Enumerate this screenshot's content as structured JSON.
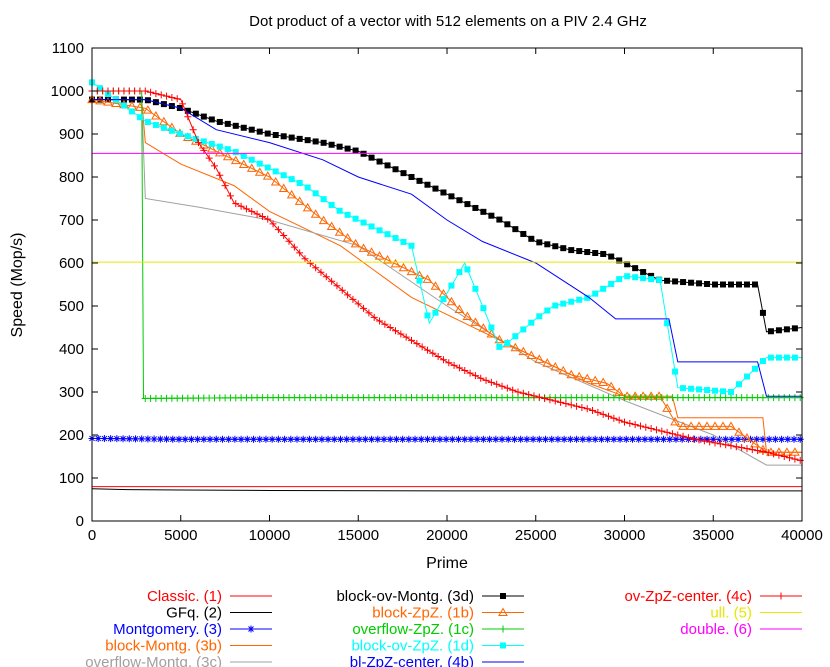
{
  "chart_data": {
    "type": "line",
    "title": "Dot product of a vector with 512 elements on a PIV 2.4 GHz",
    "xlabel": "Prime",
    "ylabel": "Speed (Mop/s)",
    "xlim": [
      0,
      40000
    ],
    "ylim": [
      0,
      1100
    ],
    "x_ticks": [
      "0",
      "5000",
      "10000",
      "15000",
      "20000",
      "25000",
      "30000",
      "35000",
      "40000"
    ],
    "y_ticks": [
      "0",
      "100",
      "200",
      "300",
      "400",
      "500",
      "600",
      "700",
      "800",
      "900",
      "1000",
      "1100"
    ],
    "grid": false,
    "legend_position": "bottom",
    "series": [
      {
        "name": "Classic. (1)",
        "color": "#ff0000",
        "marker": "none",
        "x": [
          0,
          40000
        ],
        "y": [
          80,
          80
        ]
      },
      {
        "name": "GFq. (2)",
        "color": "#000000",
        "marker": "none",
        "x": [
          0,
          2000,
          5000,
          10000,
          20000,
          30000,
          40000
        ],
        "y": [
          75,
          73,
          72,
          71,
          70,
          70,
          70
        ]
      },
      {
        "name": "Montgomery. (3)",
        "color": "#0000ff",
        "marker": "star",
        "x": [
          0,
          5000,
          10000,
          15000,
          20000,
          25000,
          30000,
          35000,
          40000
        ],
        "y": [
          192,
          190,
          190,
          190,
          190,
          190,
          190,
          190,
          190
        ]
      },
      {
        "name": "block-Montg. (3b)",
        "color": "#ff6600",
        "marker": "none",
        "x": [
          0,
          2800,
          3000,
          5000,
          8000,
          10000,
          12000,
          14000,
          16000,
          18000,
          20000,
          22000,
          24000,
          26000,
          28000,
          30000,
          32700,
          33000,
          37800,
          38000,
          40000
        ],
        "y": [
          980,
          980,
          880,
          830,
          780,
          720,
          680,
          640,
          580,
          520,
          480,
          440,
          400,
          360,
          320,
          290,
          290,
          240,
          240,
          160,
          160
        ]
      },
      {
        "name": "overflow-Montg. (3c)",
        "color": "#a0a0a0",
        "marker": "none",
        "x": [
          0,
          2800,
          3000,
          6000,
          10000,
          15000,
          20000,
          25000,
          30000,
          35000,
          38000,
          40000
        ],
        "y": [
          980,
          980,
          750,
          730,
          700,
          640,
          500,
          370,
          280,
          200,
          130,
          130
        ]
      },
      {
        "name": "block-ov-Montg. (3d)",
        "color": "#000000",
        "marker": "square",
        "x": [
          0,
          3000,
          5000,
          7000,
          10000,
          13000,
          15000,
          17000,
          19000,
          21000,
          23000,
          25000,
          27000,
          29000,
          30000,
          32000,
          35000,
          37500,
          38000,
          40000
        ],
        "y": [
          980,
          980,
          960,
          930,
          900,
          880,
          860,
          820,
          780,
          740,
          700,
          650,
          630,
          620,
          600,
          560,
          550,
          550,
          440,
          450
        ]
      },
      {
        "name": "block-ZpZ. (1b)",
        "color": "#ff6600",
        "marker": "triangle",
        "x": [
          0,
          3000,
          5000,
          7000,
          10000,
          13000,
          15000,
          17000,
          19000,
          21000,
          23000,
          25000,
          27000,
          29000,
          30000,
          32000,
          33000,
          36000,
          38000,
          40000
        ],
        "y": [
          980,
          960,
          900,
          860,
          800,
          700,
          640,
          600,
          560,
          480,
          420,
          380,
          340,
          320,
          290,
          290,
          220,
          220,
          160,
          160
        ]
      },
      {
        "name": "overflow-ZpZ. (1c)",
        "color": "#00cc00",
        "marker": "plus",
        "x": [
          0,
          2800,
          2900,
          10000,
          20000,
          30000,
          40000
        ],
        "y": [
          1000,
          1000,
          285,
          287,
          287,
          287,
          287
        ]
      },
      {
        "name": "block-ov-ZpZ. (1d)",
        "color": "#00ffff",
        "marker": "square",
        "x": [
          0,
          3000,
          5000,
          8000,
          10000,
          12000,
          14000,
          16000,
          18000,
          19000,
          21000,
          23000,
          25000,
          26000,
          28000,
          30000,
          32000,
          33000,
          36000,
          38000,
          40000
        ],
        "y": [
          1020,
          930,
          900,
          860,
          820,
          780,
          720,
          680,
          640,
          460,
          600,
          400,
          470,
          500,
          520,
          570,
          560,
          310,
          300,
          380,
          380
        ]
      },
      {
        "name": "bl-ZpZ-center. (4b)",
        "color": "#0000ff",
        "marker": "none",
        "x": [
          0,
          3000,
          5000,
          7000,
          10000,
          13000,
          15000,
          18000,
          20000,
          22000,
          25000,
          28000,
          29500,
          32500,
          33000,
          37500,
          38000,
          40000
        ],
        "y": [
          980,
          980,
          960,
          910,
          880,
          840,
          800,
          760,
          700,
          650,
          600,
          520,
          470,
          470,
          370,
          370,
          290,
          290
        ]
      },
      {
        "name": "ov-ZpZ-center. (4c)",
        "color": "#ff0000",
        "marker": "plus",
        "x": [
          0,
          3000,
          5000,
          6000,
          7000,
          8000,
          10000,
          12000,
          14000,
          16000,
          18000,
          20000,
          22000,
          24000,
          26000,
          28000,
          30000,
          32000,
          34000,
          36000,
          38000,
          40000
        ],
        "y": [
          1000,
          1000,
          980,
          880,
          820,
          740,
          700,
          610,
          540,
          470,
          420,
          370,
          330,
          300,
          280,
          260,
          230,
          210,
          190,
          175,
          160,
          140
        ]
      },
      {
        "name": "ull. (5)",
        "color": "#e8e800",
        "marker": "none",
        "x": [
          0,
          40000
        ],
        "y": [
          602,
          602
        ]
      },
      {
        "name": "double. (6)",
        "color": "#ff00ff",
        "marker": "none",
        "x": [
          0,
          40000
        ],
        "y": [
          855,
          855
        ]
      }
    ]
  }
}
